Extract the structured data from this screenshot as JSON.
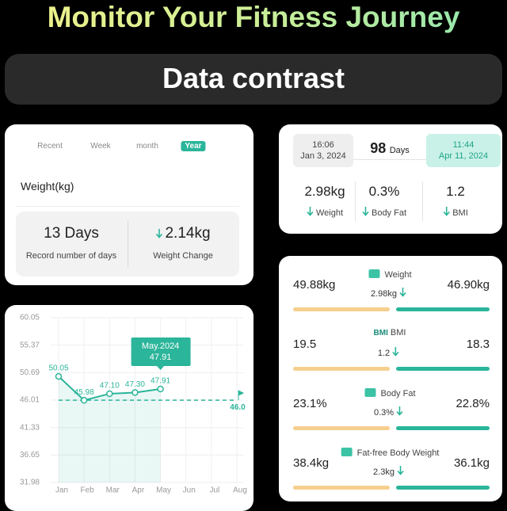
{
  "header": {
    "title": "Monitor Your Fitness Journey",
    "banner": "Data contrast"
  },
  "summary_card": {
    "tabs": [
      "Recent",
      "Week",
      "month",
      "Year"
    ],
    "active_tab": 3,
    "metric": "Weight(kg)",
    "stats": [
      {
        "value": "13 Days",
        "label": "Record number of days"
      },
      {
        "value": "2.14kg",
        "label": "Weight Change"
      }
    ]
  },
  "period_card": {
    "start": {
      "time": "16:06",
      "date": "Jan 3, 2024"
    },
    "duration": {
      "value": "98",
      "unit": "Days"
    },
    "end": {
      "time": "11:44",
      "date": "Apr 11, 2024"
    },
    "changes": [
      {
        "value": "2.98kg",
        "label": "Weight"
      },
      {
        "value": "0.3%",
        "label": "Body Fat"
      },
      {
        "value": "1.2",
        "label": "BMI"
      }
    ]
  },
  "chart_data": {
    "type": "line",
    "categories": [
      "Jan",
      "Feb",
      "Mar",
      "Apr",
      "May",
      "Jun",
      "Jul",
      "Aug"
    ],
    "values": [
      50.05,
      45.98,
      47.1,
      47.3,
      47.91,
      null,
      null,
      null
    ],
    "value_labels": [
      "50.05",
      "45.98",
      "47.10",
      "47.30",
      "47.91",
      null,
      null,
      null
    ],
    "color": "#2bb59a",
    "ylim": [
      31.98,
      60.05
    ],
    "yticks": [
      60.05,
      55.37,
      50.69,
      46.01,
      41.33,
      36.65,
      31.98
    ],
    "grid": true,
    "target": {
      "value": 46.0,
      "label": "46.0"
    },
    "tooltip": {
      "title": "May.2024"
    }
  },
  "comparison_card": {
    "rows": [
      {
        "label": "Weight",
        "start": "49.88kg",
        "end": "46.90kg",
        "change": "2.98kg"
      },
      {
        "icon": "BMI",
        "label": "BMI",
        "start": "19.5",
        "end": "18.3",
        "change": "1.2"
      },
      {
        "label": "Body Fat",
        "start": "23.1%",
        "end": "22.8%",
        "change": "0.3%"
      },
      {
        "label": "Fat-free Body Weight",
        "start": "38.4kg",
        "end": "36.1kg",
        "change": "2.3kg"
      }
    ]
  }
}
